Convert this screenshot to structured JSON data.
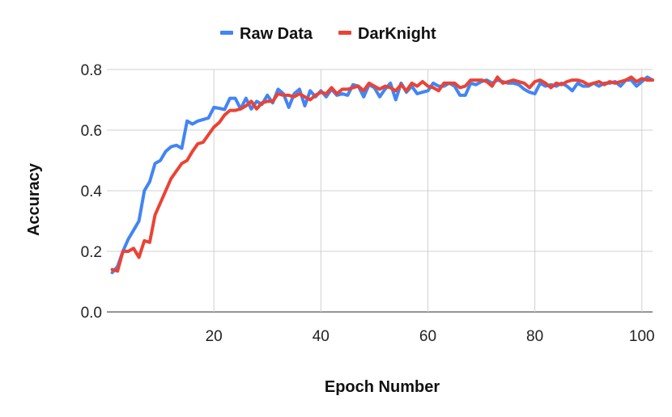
{
  "chart_data": {
    "type": "line",
    "xlabel": "Epoch Number",
    "ylabel": "Accuracy",
    "xlim": [
      0,
      102
    ],
    "ylim": [
      0,
      0.8
    ],
    "x_ticks": [
      20,
      40,
      60,
      80,
      100
    ],
    "y_ticks": [
      0.0,
      0.2,
      0.4,
      0.6,
      0.8
    ],
    "y_tick_labels": [
      "0.0",
      "0.2",
      "0.4",
      "0.6",
      "0.8"
    ],
    "grid": true,
    "legend_position": "top",
    "series": [
      {
        "name": "Raw Data",
        "color": "#4285F4",
        "values": [
          0.13,
          0.15,
          0.2,
          0.24,
          0.27,
          0.3,
          0.4,
          0.43,
          0.49,
          0.5,
          0.53,
          0.545,
          0.55,
          0.54,
          0.63,
          0.62,
          0.63,
          0.635,
          0.64,
          0.675,
          0.672,
          0.668,
          0.705,
          0.705,
          0.67,
          0.705,
          0.67,
          0.695,
          0.685,
          0.715,
          0.69,
          0.735,
          0.72,
          0.675,
          0.72,
          0.735,
          0.68,
          0.73,
          0.71,
          0.73,
          0.71,
          0.735,
          0.715,
          0.72,
          0.715,
          0.75,
          0.745,
          0.71,
          0.75,
          0.74,
          0.71,
          0.735,
          0.755,
          0.7,
          0.755,
          0.725,
          0.745,
          0.72,
          0.725,
          0.73,
          0.755,
          0.745,
          0.745,
          0.755,
          0.745,
          0.715,
          0.715,
          0.755,
          0.75,
          0.76,
          0.765,
          0.755,
          0.765,
          0.76,
          0.755,
          0.755,
          0.75,
          0.735,
          0.725,
          0.72,
          0.755,
          0.745,
          0.75,
          0.745,
          0.755,
          0.745,
          0.73,
          0.755,
          0.745,
          0.745,
          0.755,
          0.745,
          0.755,
          0.755,
          0.76,
          0.745,
          0.765,
          0.765,
          0.745,
          0.76,
          0.775,
          0.765
        ]
      },
      {
        "name": "DarKnight",
        "color": "#EA4335",
        "values": [
          0.14,
          0.135,
          0.2,
          0.2,
          0.21,
          0.18,
          0.235,
          0.23,
          0.32,
          0.36,
          0.4,
          0.44,
          0.465,
          0.49,
          0.5,
          0.53,
          0.555,
          0.56,
          0.585,
          0.61,
          0.625,
          0.65,
          0.665,
          0.665,
          0.67,
          0.68,
          0.695,
          0.67,
          0.69,
          0.695,
          0.695,
          0.72,
          0.715,
          0.715,
          0.71,
          0.72,
          0.71,
          0.7,
          0.715,
          0.725,
          0.72,
          0.74,
          0.72,
          0.735,
          0.735,
          0.74,
          0.745,
          0.73,
          0.755,
          0.745,
          0.735,
          0.745,
          0.74,
          0.73,
          0.75,
          0.73,
          0.755,
          0.745,
          0.76,
          0.745,
          0.74,
          0.73,
          0.755,
          0.755,
          0.755,
          0.74,
          0.745,
          0.765,
          0.765,
          0.765,
          0.76,
          0.745,
          0.775,
          0.755,
          0.76,
          0.765,
          0.76,
          0.755,
          0.74,
          0.76,
          0.765,
          0.755,
          0.74,
          0.755,
          0.75,
          0.76,
          0.765,
          0.765,
          0.76,
          0.75,
          0.755,
          0.76,
          0.75,
          0.76,
          0.755,
          0.76,
          0.765,
          0.775,
          0.76,
          0.77,
          0.765,
          0.765
        ]
      }
    ]
  }
}
